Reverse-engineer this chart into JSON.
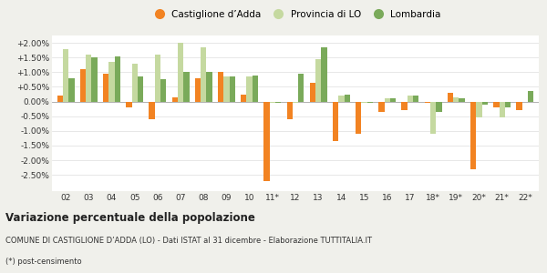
{
  "categories": [
    "02",
    "03",
    "04",
    "05",
    "06",
    "07",
    "08",
    "09",
    "10",
    "11*",
    "12",
    "13",
    "14",
    "15",
    "16",
    "17",
    "18*",
    "19*",
    "20*",
    "21*",
    "22*"
  ],
  "castiglione": [
    0.2,
    1.1,
    0.95,
    -0.2,
    -0.6,
    0.15,
    0.8,
    1.0,
    0.25,
    -2.7,
    -0.6,
    0.65,
    -1.35,
    -1.1,
    -0.35,
    -0.3,
    -0.05,
    0.3,
    -2.3,
    -0.2,
    -0.3
  ],
  "provincia": [
    1.8,
    1.6,
    1.35,
    1.3,
    1.6,
    2.0,
    1.85,
    0.85,
    0.85,
    -0.05,
    -0.05,
    1.45,
    0.2,
    -0.05,
    0.1,
    0.2,
    -1.1,
    0.15,
    -0.55,
    -0.55,
    0.0
  ],
  "lombardia": [
    0.8,
    1.5,
    1.55,
    0.85,
    0.75,
    1.0,
    1.0,
    0.85,
    0.9,
    -0.05,
    0.95,
    1.85,
    0.25,
    -0.05,
    0.1,
    0.2,
    -0.35,
    0.1,
    -0.1,
    -0.2,
    0.35
  ],
  "color_castiglione": "#f28322",
  "color_provincia": "#c5d9a0",
  "color_lombardia": "#7aaa5a",
  "title": "Variazione percentuale della popolazione",
  "subtitle": "COMUNE DI CASTIGLIONE D’ADDA (LO) - Dati ISTAT al 31 dicembre - Elaborazione TUTTITALIA.IT",
  "footnote": "(*) post-censimento",
  "legend_labels": [
    "Castiglione d’Adda",
    "Provincia di LO",
    "Lombardia"
  ],
  "ylim": [
    -3.05,
    2.25
  ],
  "yticks": [
    -2.5,
    -2.0,
    -1.5,
    -1.0,
    -0.5,
    0.0,
    0.5,
    1.0,
    1.5,
    2.0
  ],
  "bg_color": "#f0f0eb",
  "plot_bg": "#ffffff",
  "grid_color": "#dddddd",
  "bar_width": 0.25
}
